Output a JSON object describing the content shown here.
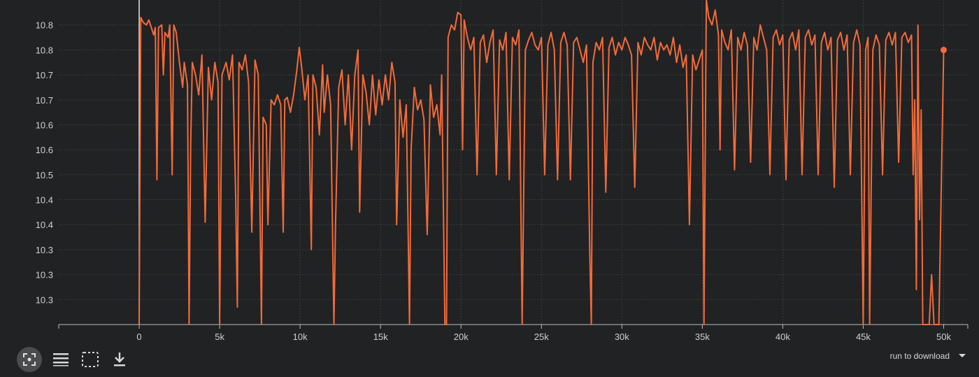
{
  "colors": {
    "background": "#212223",
    "line": "#f26b3a",
    "grid": "#3c3e40",
    "axis": "#bdbdbd",
    "tick_text": "#d0d0d0"
  },
  "toolbar": {
    "icons": [
      "fit-domain-icon",
      "toggle-y-log-icon",
      "select-zoom-icon",
      "download-icon"
    ]
  },
  "download": {
    "label": "run to download",
    "icon": "chevron-down-icon"
  },
  "chart_data": {
    "type": "line",
    "title": "",
    "xlabel": "",
    "ylabel": "",
    "xlim": [
      -5000,
      51500
    ],
    "ylim": [
      0,
      13
    ],
    "x_ticks": [
      0,
      5000,
      10000,
      15000,
      20000,
      25000,
      30000,
      35000,
      40000,
      45000,
      50000
    ],
    "x_tick_labels": [
      "0",
      "5k",
      "10k",
      "15k",
      "20k",
      "25k",
      "30k",
      "35k",
      "40k",
      "45k",
      "50k"
    ],
    "y_ticks": [
      1,
      2,
      3,
      4,
      5,
      6,
      7,
      8,
      9,
      10,
      11,
      12
    ],
    "y_tick_labels": [
      "10.3",
      "10.3",
      "10.3",
      "10.4",
      "10.4",
      "10.5",
      "10.6",
      "10.6",
      "10.7",
      "10.7",
      "10.8",
      "10.8"
    ],
    "grid": true,
    "legend": "none",
    "series": [
      {
        "color": "#f26b3a",
        "last_point": [
          50000,
          11.0
        ],
        "points": [
          [
            0,
            0
          ],
          [
            100,
            12.3
          ],
          [
            250,
            12.1
          ],
          [
            450,
            12.0
          ],
          [
            600,
            12.2
          ],
          [
            800,
            11.8
          ],
          [
            900,
            11.6
          ],
          [
            1000,
            11.9
          ],
          [
            1100,
            5.8
          ],
          [
            1200,
            11.9
          ],
          [
            1400,
            12.0
          ],
          [
            1500,
            10.0
          ],
          [
            1600,
            11.7
          ],
          [
            1800,
            11.5
          ],
          [
            1900,
            12.0
          ],
          [
            2050,
            6.0
          ],
          [
            2150,
            12.0
          ],
          [
            2300,
            11.7
          ],
          [
            2500,
            10.5
          ],
          [
            2700,
            9.5
          ],
          [
            2800,
            10.5
          ],
          [
            3000,
            9.6
          ],
          [
            3100,
            0
          ],
          [
            3200,
            7.2
          ],
          [
            3300,
            10.5
          ],
          [
            3500,
            10.0
          ],
          [
            3700,
            9.2
          ],
          [
            3900,
            10.8
          ],
          [
            4100,
            4.1
          ],
          [
            4300,
            10.3
          ],
          [
            4500,
            9.0
          ],
          [
            4700,
            10.5
          ],
          [
            4900,
            9.7
          ],
          [
            5000,
            0
          ],
          [
            5150,
            10.0
          ],
          [
            5400,
            10.5
          ],
          [
            5600,
            9.8
          ],
          [
            5800,
            10.8
          ],
          [
            6000,
            5.0
          ],
          [
            6100,
            0.7
          ],
          [
            6200,
            10.5
          ],
          [
            6400,
            10.2
          ],
          [
            6600,
            10.8
          ],
          [
            6800,
            9.7
          ],
          [
            7000,
            3.7
          ],
          [
            7200,
            10.6
          ],
          [
            7400,
            10.0
          ],
          [
            7600,
            0
          ],
          [
            7700,
            8.3
          ],
          [
            7900,
            8.0
          ],
          [
            8000,
            4.0
          ],
          [
            8200,
            9.0
          ],
          [
            8400,
            8.8
          ],
          [
            8600,
            9.2
          ],
          [
            8800,
            8.8
          ],
          [
            8950,
            3.7
          ],
          [
            9050,
            9.0
          ],
          [
            9200,
            9.1
          ],
          [
            9400,
            8.5
          ],
          [
            9600,
            9.2
          ],
          [
            9800,
            10.2
          ],
          [
            9950,
            11.1
          ],
          [
            10100,
            10.3
          ],
          [
            10300,
            9.0
          ],
          [
            10500,
            10.0
          ],
          [
            10700,
            3.0
          ],
          [
            10800,
            10.0
          ],
          [
            11000,
            9.5
          ],
          [
            11200,
            7.6
          ],
          [
            11400,
            10.4
          ],
          [
            11500,
            8.5
          ],
          [
            11700,
            10.0
          ],
          [
            11900,
            8.8
          ],
          [
            12100,
            0
          ],
          [
            12200,
            4.0
          ],
          [
            12400,
            9.5
          ],
          [
            12600,
            10.2
          ],
          [
            12800,
            8.0
          ],
          [
            13000,
            10.0
          ],
          [
            13200,
            7.0
          ],
          [
            13400,
            10.0
          ],
          [
            13600,
            11.0
          ],
          [
            13700,
            4.5
          ],
          [
            13900,
            10.0
          ],
          [
            14100,
            9.3
          ],
          [
            14300,
            8.0
          ],
          [
            14500,
            10.0
          ],
          [
            14700,
            8.4
          ],
          [
            14900,
            9.8
          ],
          [
            15100,
            8.8
          ],
          [
            15300,
            10.0
          ],
          [
            15500,
            9.0
          ],
          [
            15700,
            10.5
          ],
          [
            15900,
            9.7
          ],
          [
            16000,
            4.0
          ],
          [
            16200,
            9.0
          ],
          [
            16400,
            7.5
          ],
          [
            16600,
            8.8
          ],
          [
            16800,
            0
          ],
          [
            16900,
            7.0
          ],
          [
            17100,
            9.5
          ],
          [
            17300,
            8.6
          ],
          [
            17500,
            9.0
          ],
          [
            17700,
            8.2
          ],
          [
            17900,
            3.6
          ],
          [
            18100,
            9.6
          ],
          [
            18300,
            8.3
          ],
          [
            18500,
            8.8
          ],
          [
            18700,
            7.6
          ],
          [
            18800,
            10.0
          ],
          [
            19000,
            0
          ],
          [
            19100,
            0
          ],
          [
            19200,
            11.5
          ],
          [
            19400,
            12.0
          ],
          [
            19600,
            11.8
          ],
          [
            19800,
            12.5
          ],
          [
            20000,
            12.4
          ],
          [
            20100,
            7.0
          ],
          [
            20200,
            12.2
          ],
          [
            20400,
            11.5
          ],
          [
            20600,
            11.0
          ],
          [
            20800,
            11.5
          ],
          [
            21000,
            6.0
          ],
          [
            21200,
            11.3
          ],
          [
            21400,
            11.6
          ],
          [
            21600,
            10.5
          ],
          [
            21800,
            11.3
          ],
          [
            22000,
            11.8
          ],
          [
            22200,
            6.0
          ],
          [
            22400,
            11.4
          ],
          [
            22600,
            11.0
          ],
          [
            22800,
            11.7
          ],
          [
            23000,
            5.8
          ],
          [
            23200,
            11.5
          ],
          [
            23400,
            11.2
          ],
          [
            23600,
            11.8
          ],
          [
            23800,
            0
          ],
          [
            24000,
            11.0
          ],
          [
            24200,
            11.4
          ],
          [
            24400,
            11.7
          ],
          [
            24600,
            11.2
          ],
          [
            24800,
            11.0
          ],
          [
            25000,
            11.5
          ],
          [
            25200,
            6.0
          ],
          [
            25400,
            11.2
          ],
          [
            25600,
            11.7
          ],
          [
            25800,
            11.0
          ],
          [
            26000,
            5.8
          ],
          [
            26200,
            11.3
          ],
          [
            26400,
            11.7
          ],
          [
            26600,
            11.2
          ],
          [
            26800,
            5.8
          ],
          [
            27000,
            11.3
          ],
          [
            27200,
            11.5
          ],
          [
            27400,
            11.0
          ],
          [
            27600,
            10.5
          ],
          [
            27800,
            11.2
          ],
          [
            28000,
            3.0
          ],
          [
            28100,
            0
          ],
          [
            28200,
            10.5
          ],
          [
            28400,
            11.3
          ],
          [
            28600,
            11.0
          ],
          [
            28800,
            11.5
          ],
          [
            29000,
            5.3
          ],
          [
            29200,
            11.1
          ],
          [
            29400,
            11.5
          ],
          [
            29600,
            10.8
          ],
          [
            29800,
            11.3
          ],
          [
            30000,
            11.0
          ],
          [
            30200,
            11.5
          ],
          [
            30400,
            11.2
          ],
          [
            30600,
            10.8
          ],
          [
            30800,
            5.5
          ],
          [
            31000,
            11.3
          ],
          [
            31200,
            10.8
          ],
          [
            31400,
            11.5
          ],
          [
            31600,
            11.2
          ],
          [
            31800,
            11.0
          ],
          [
            32000,
            11.5
          ],
          [
            32200,
            10.6
          ],
          [
            32400,
            11.3
          ],
          [
            32600,
            11.0
          ],
          [
            32800,
            11.2
          ],
          [
            33000,
            10.8
          ],
          [
            33200,
            11.5
          ],
          [
            33400,
            10.5
          ],
          [
            33600,
            11.2
          ],
          [
            33800,
            10.3
          ],
          [
            34000,
            10.8
          ],
          [
            34200,
            4.0
          ],
          [
            34400,
            10.8
          ],
          [
            34600,
            10.2
          ],
          [
            34800,
            10.6
          ],
          [
            35000,
            11.0
          ],
          [
            35100,
            0
          ],
          [
            35250,
            13.0
          ],
          [
            35400,
            12.3
          ],
          [
            35600,
            12.0
          ],
          [
            35800,
            12.6
          ],
          [
            36000,
            11.6
          ],
          [
            36100,
            7.0
          ],
          [
            36200,
            11.8
          ],
          [
            36400,
            11.3
          ],
          [
            36600,
            11.0
          ],
          [
            36800,
            11.8
          ],
          [
            37000,
            6.2
          ],
          [
            37200,
            11.5
          ],
          [
            37400,
            11.0
          ],
          [
            37600,
            11.7
          ],
          [
            37800,
            11.2
          ],
          [
            38000,
            6.5
          ],
          [
            38200,
            11.5
          ],
          [
            38400,
            11.0
          ],
          [
            38600,
            12.0
          ],
          [
            38800,
            11.5
          ],
          [
            39000,
            11.0
          ],
          [
            39200,
            6.0
          ],
          [
            39400,
            11.5
          ],
          [
            39600,
            11.8
          ],
          [
            39800,
            11.2
          ],
          [
            40000,
            11.6
          ],
          [
            40200,
            5.8
          ],
          [
            40400,
            11.4
          ],
          [
            40600,
            11.7
          ],
          [
            40800,
            11.0
          ],
          [
            41000,
            11.8
          ],
          [
            41200,
            6.0
          ],
          [
            41400,
            11.5
          ],
          [
            41600,
            11.8
          ],
          [
            41800,
            11.2
          ],
          [
            42000,
            11.6
          ],
          [
            42200,
            6.0
          ],
          [
            42400,
            11.3
          ],
          [
            42600,
            11.7
          ],
          [
            42800,
            11.0
          ],
          [
            43000,
            11.5
          ],
          [
            43200,
            5.5
          ],
          [
            43400,
            11.4
          ],
          [
            43600,
            11.7
          ],
          [
            43800,
            11.0
          ],
          [
            44000,
            11.6
          ],
          [
            44200,
            6.0
          ],
          [
            44400,
            11.3
          ],
          [
            44600,
            11.8
          ],
          [
            44800,
            11.2
          ],
          [
            45000,
            0
          ],
          [
            45150,
            11.0
          ],
          [
            45300,
            11.5
          ],
          [
            45400,
            0
          ],
          [
            45600,
            11.0
          ],
          [
            45800,
            11.6
          ],
          [
            46000,
            11.2
          ],
          [
            46200,
            6.0
          ],
          [
            46400,
            11.4
          ],
          [
            46600,
            11.7
          ],
          [
            46800,
            11.2
          ],
          [
            47000,
            11.7
          ],
          [
            47200,
            6.5
          ],
          [
            47400,
            11.5
          ],
          [
            47600,
            11.7
          ],
          [
            47800,
            11.3
          ],
          [
            48000,
            11.6
          ],
          [
            48100,
            6.0
          ],
          [
            48200,
            9.0
          ],
          [
            48300,
            1.4
          ],
          [
            48400,
            12.0
          ],
          [
            48500,
            4.2
          ],
          [
            48600,
            8.6
          ],
          [
            48700,
            0
          ],
          [
            48800,
            0
          ],
          [
            49000,
            0
          ],
          [
            49100,
            0
          ],
          [
            49250,
            2.0
          ],
          [
            49400,
            0
          ],
          [
            49700,
            0
          ],
          [
            50000,
            11.0
          ]
        ]
      }
    ]
  }
}
